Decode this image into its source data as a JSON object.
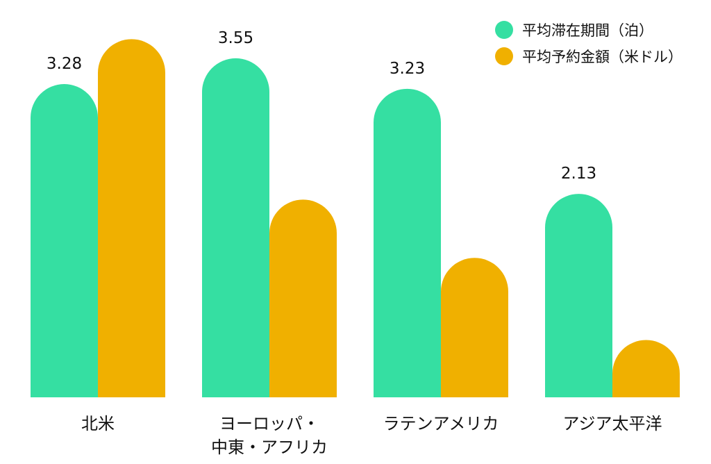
{
  "chart_data": {
    "type": "bar",
    "categories": [
      "北米",
      "ヨーロッパ・\n中東・アフリカ",
      "ラテンアメリカ",
      "アジア太平洋"
    ],
    "series": [
      {
        "name": "平均滞在期間（泊）",
        "color": "#35DFA2",
        "values": [
          3.28,
          3.55,
          3.23,
          2.13
        ],
        "labels": [
          "3.28",
          "3.55",
          "3.23",
          "2.13"
        ]
      },
      {
        "name": "平均予約金額（米ドル）",
        "color": "#F0B000",
        "values": [
          3.75,
          2.07,
          1.46,
          0.6
        ],
        "labels": [
          "",
          "",
          "",
          ""
        ]
      }
    ],
    "ylim": [
      0,
      4
    ],
    "legend_position": "top-right",
    "grid": false
  }
}
